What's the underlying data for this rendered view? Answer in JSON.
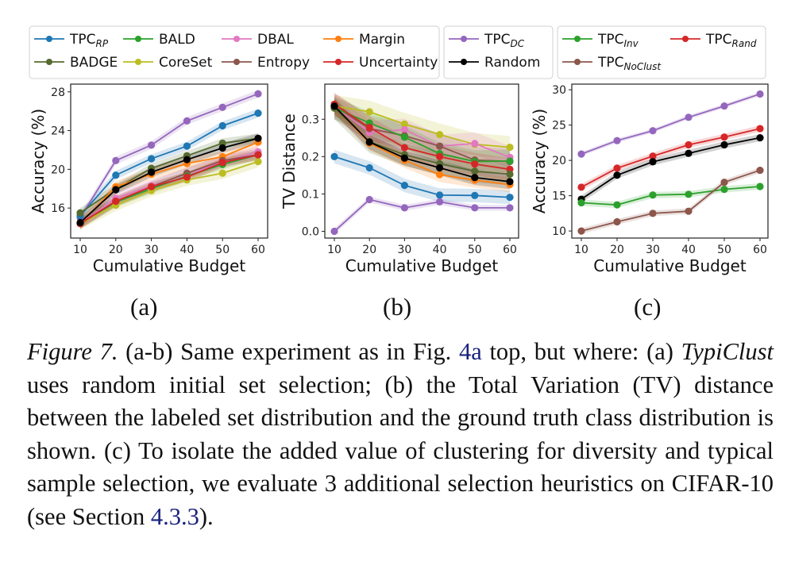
{
  "figure": {
    "panel_labels": [
      "(a)",
      "(b)",
      "(c)"
    ],
    "caption": {
      "prefix": "Figure 7.",
      "part1": " (a-b) Same experiment as in Fig. ",
      "ref1": "4a",
      "part2": " top, but where: (a) ",
      "italic2": "TypiClust",
      "part3": " uses random initial set selection; (b) the Total Variation (TV) distance between the labeled set distribution and the ground truth class distribution is shown. (c) To isolate the added value of clustering for diversity and typical sample selection, we evaluate 3 additional selection heuristics on CIFAR-10 (see Section ",
      "ref2": "4.3.3",
      "part4": ")."
    }
  },
  "legends": {
    "main": [
      {
        "name": "TPC",
        "sub": "RP",
        "color": "#1f77b4"
      },
      {
        "name": "BALD",
        "sub": "",
        "color": "#2ca02c"
      },
      {
        "name": "DBAL",
        "sub": "",
        "color": "#e377c2"
      },
      {
        "name": "Margin",
        "sub": "",
        "color": "#ff7f0e"
      },
      {
        "name": "BADGE",
        "sub": "",
        "color": "#556b2f"
      },
      {
        "name": "CoreSet",
        "sub": "",
        "color": "#bcbd22"
      },
      {
        "name": "Entropy",
        "sub": "",
        "color": "#8c564b"
      },
      {
        "name": "Uncertainty",
        "sub": "",
        "color": "#d62728"
      }
    ],
    "middle": [
      {
        "name": "TPC",
        "sub": "DC",
        "color": "#9467bd"
      },
      {
        "name": "Random",
        "sub": "",
        "color": "#000000"
      }
    ],
    "right": [
      {
        "name": "TPC",
        "sub": "Inv",
        "color": "#2ca02c"
      },
      {
        "name": "TPC",
        "sub": "Rand",
        "color": "#d62728"
      },
      {
        "name": "TPC",
        "sub": "NoClust",
        "color": "#8c564b"
      }
    ]
  },
  "chart_data": [
    {
      "type": "line",
      "panel": "(a)",
      "xlabel": "Cumulative Budget",
      "ylabel": "Accuracy (%)",
      "x": [
        10,
        20,
        30,
        40,
        50,
        60
      ],
      "xticks": [
        "10",
        "20",
        "30",
        "40",
        "50",
        "60"
      ],
      "yticks": [
        16,
        20,
        24,
        28
      ],
      "ylim": [
        12.9,
        28.8
      ],
      "series": [
        {
          "name": "TPC_DC",
          "color": "#9467bd",
          "values": [
            15.0,
            20.9,
            22.5,
            25.0,
            26.4,
            27.8
          ],
          "band": 0.4
        },
        {
          "name": "TPC_RP",
          "color": "#1f77b4",
          "values": [
            15.2,
            19.4,
            21.1,
            22.4,
            24.5,
            25.8
          ],
          "band": 0.45
        },
        {
          "name": "BADGE",
          "color": "#556b2f",
          "values": [
            15.5,
            18.0,
            20.1,
            21.4,
            22.7,
            23.2
          ],
          "band": 0.5
        },
        {
          "name": "Margin",
          "color": "#ff7f0e",
          "values": [
            14.4,
            18.2,
            19.5,
            20.6,
            21.3,
            22.8
          ],
          "band": 0.6
        },
        {
          "name": "DBAL",
          "color": "#e377c2",
          "values": [
            14.4,
            17.0,
            18.3,
            19.5,
            20.8,
            21.8
          ],
          "band": 0.6
        },
        {
          "name": "Entropy",
          "color": "#8c564b",
          "values": [
            14.4,
            16.7,
            18.2,
            19.6,
            20.9,
            21.5
          ],
          "band": 0.6
        },
        {
          "name": "BALD",
          "color": "#2ca02c",
          "values": [
            14.4,
            16.6,
            18.0,
            19.3,
            20.5,
            21.5
          ],
          "band": 0.5
        },
        {
          "name": "CoreSet",
          "color": "#bcbd22",
          "values": [
            14.4,
            16.3,
            17.8,
            18.9,
            19.6,
            20.8
          ],
          "band": 0.6
        },
        {
          "name": "Uncertainty",
          "color": "#d62728",
          "values": [
            14.4,
            16.7,
            18.2,
            19.2,
            20.7,
            21.5
          ],
          "band": 0.5
        },
        {
          "name": "Random",
          "color": "#000000",
          "values": [
            14.5,
            17.9,
            19.7,
            21.0,
            22.2,
            23.2
          ],
          "band": 0.5
        }
      ]
    },
    {
      "type": "line",
      "panel": "(b)",
      "xlabel": "Cumulative Budget",
      "ylabel": "TV Distance",
      "x": [
        10,
        20,
        30,
        40,
        50,
        60
      ],
      "xticks": [
        "10",
        "20",
        "30",
        "40",
        "50",
        "60"
      ],
      "yticks": [
        "0.0",
        "0.1",
        "0.2",
        "0.3"
      ],
      "ylim": [
        -0.018,
        0.394
      ],
      "series": [
        {
          "name": "CoreSet",
          "color": "#bcbd22",
          "values": [
            0.335,
            0.32,
            0.287,
            0.259,
            0.233,
            0.225
          ],
          "band": 0.03
        },
        {
          "name": "DBAL",
          "color": "#e377c2",
          "values": [
            0.335,
            0.265,
            0.272,
            0.228,
            0.235,
            0.198
          ],
          "band": 0.03
        },
        {
          "name": "Entropy",
          "color": "#8c564b",
          "values": [
            0.335,
            0.275,
            0.256,
            0.228,
            0.191,
            0.187
          ],
          "band": 0.035
        },
        {
          "name": "BALD",
          "color": "#2ca02c",
          "values": [
            0.33,
            0.29,
            0.252,
            0.208,
            0.187,
            0.188
          ],
          "band": 0.03
        },
        {
          "name": "Uncertainty",
          "color": "#d62728",
          "values": [
            0.34,
            0.278,
            0.224,
            0.2,
            0.18,
            0.166
          ],
          "band": 0.03
        },
        {
          "name": "BADGE",
          "color": "#556b2f",
          "values": [
            0.33,
            0.24,
            0.205,
            0.181,
            0.161,
            0.153
          ],
          "band": 0.03
        },
        {
          "name": "Margin",
          "color": "#ff7f0e",
          "values": [
            0.335,
            0.236,
            0.19,
            0.152,
            0.137,
            0.125
          ],
          "band": 0.02
        },
        {
          "name": "Random",
          "color": "#000000",
          "values": [
            0.335,
            0.239,
            0.196,
            0.17,
            0.144,
            0.133
          ],
          "band": 0.02
        },
        {
          "name": "TPC_RP",
          "color": "#1f77b4",
          "values": [
            0.2,
            0.17,
            0.123,
            0.097,
            0.096,
            0.091
          ],
          "band": 0.018
        },
        {
          "name": "TPC_DC",
          "color": "#9467bd",
          "values": [
            0.0,
            0.085,
            0.063,
            0.079,
            0.063,
            0.063
          ],
          "band": 0.008
        }
      ]
    },
    {
      "type": "line",
      "panel": "(c)",
      "xlabel": "Cumulative Budget",
      "ylabel": "Accuracy (%)",
      "x": [
        10,
        20,
        30,
        40,
        50,
        60
      ],
      "xticks": [
        "10",
        "20",
        "30",
        "40",
        "50",
        "60"
      ],
      "yticks": [
        10,
        15,
        20,
        25,
        30
      ],
      "ylim": [
        9.0,
        30.8
      ],
      "series": [
        {
          "name": "TPC_DC",
          "color": "#9467bd",
          "values": [
            20.9,
            22.8,
            24.2,
            26.1,
            27.7,
            29.4
          ],
          "band": 0.3
        },
        {
          "name": "TPC_Rand",
          "color": "#d62728",
          "values": [
            16.2,
            18.9,
            20.6,
            22.2,
            23.3,
            24.5
          ],
          "band": 0.45
        },
        {
          "name": "Random",
          "color": "#000000",
          "values": [
            14.5,
            17.9,
            19.8,
            21.0,
            22.2,
            23.2
          ],
          "band": 0.5
        },
        {
          "name": "TPC_Inv",
          "color": "#2ca02c",
          "values": [
            14.0,
            13.7,
            15.1,
            15.2,
            15.9,
            16.3
          ],
          "band": 0.45
        },
        {
          "name": "TPC_NoClust",
          "color": "#8c564b",
          "values": [
            10.0,
            11.3,
            12.5,
            12.8,
            16.9,
            18.6
          ],
          "band": 0.4
        }
      ]
    }
  ]
}
